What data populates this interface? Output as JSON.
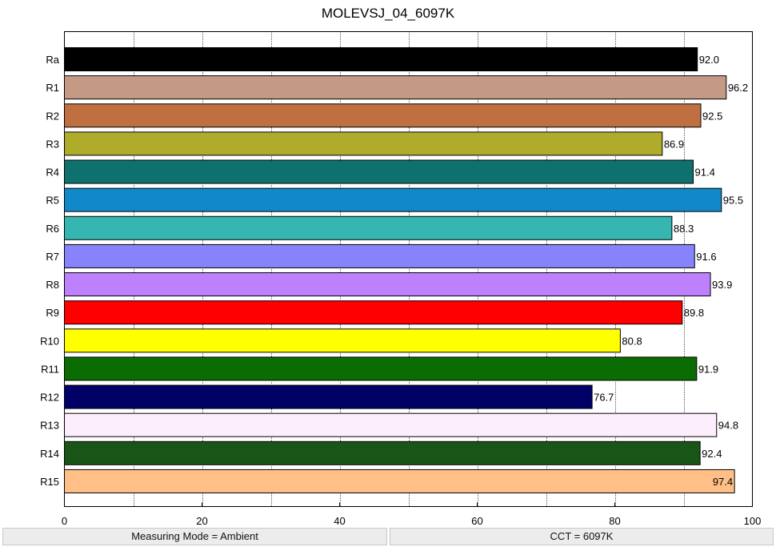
{
  "chart_data": {
    "type": "bar",
    "orientation": "horizontal",
    "title": "MOLEVSJ_04_6097K",
    "xlabel": "",
    "ylabel": "",
    "xlim": [
      0,
      100
    ],
    "xticks": [
      0,
      20,
      40,
      60,
      80,
      100
    ],
    "grid": "vertical dotted",
    "categories": [
      "Ra",
      "R1",
      "R2",
      "R3",
      "R4",
      "R5",
      "R6",
      "R7",
      "R8",
      "R9",
      "R10",
      "R11",
      "R12",
      "R13",
      "R14",
      "R15"
    ],
    "values": [
      92.0,
      96.2,
      92.5,
      86.9,
      91.4,
      95.5,
      88.3,
      91.6,
      93.9,
      89.8,
      80.8,
      91.9,
      76.7,
      94.8,
      92.4,
      97.4
    ],
    "value_labels": [
      "92.0",
      "96.2",
      "92.5",
      "86.9",
      "91.4",
      "95.5",
      "88.3",
      "91.6",
      "93.9",
      "89.8",
      "80.8",
      "91.9",
      "76.7",
      "94.8",
      "92.4",
      "97.4"
    ],
    "colors": [
      "#000000",
      "#c49a84",
      "#bf6f40",
      "#afab2b",
      "#0f716e",
      "#1189c8",
      "#35b6b0",
      "#8683fc",
      "#bd81fd",
      "#fe0000",
      "#ffff00",
      "#0b6c03",
      "#000066",
      "#fdeefe",
      "#1a5518",
      "#ffbf86"
    ]
  },
  "status": {
    "left": "Measuring Mode = Ambient",
    "right": "CCT = 6097K"
  }
}
